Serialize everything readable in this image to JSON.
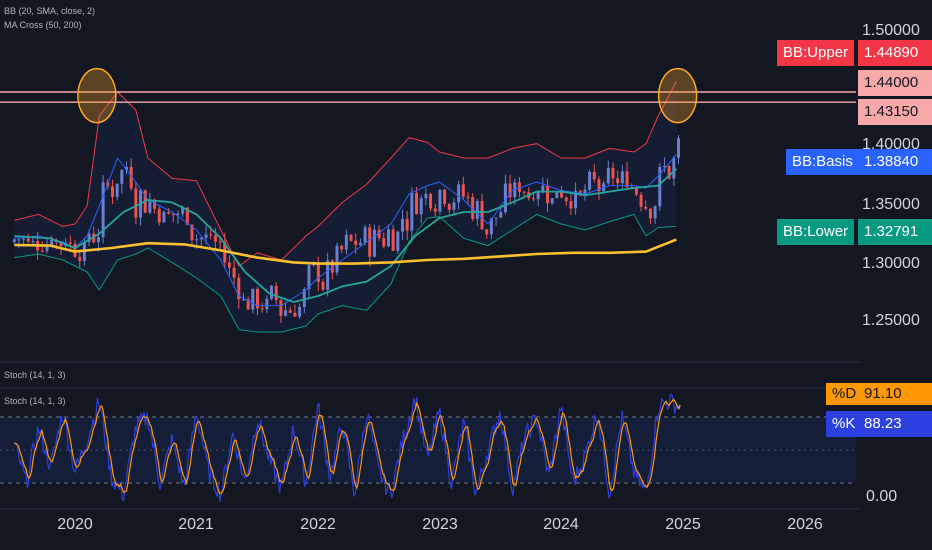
{
  "indicators": {
    "bb": "BB (20, SMA, close, 2)",
    "ma_cross": "MA Cross (50, 200)",
    "stoch_top": "Stoch (14, 1, 3)",
    "stoch_pane": "Stoch (14, 1, 3)"
  },
  "colors": {
    "background": "#131722",
    "candle_up": "#6a7fd0",
    "candle_down": "#ef5350",
    "bb_upper": "#f23645",
    "bb_basis": "#2962ff",
    "bb_lower": "#089981",
    "ma_fast": "#26a69a",
    "ma_slow": "#fbc02d",
    "resistance": "#f7a8a8",
    "highlight": "#ffa726",
    "stoch_k": "#2c3fe0",
    "stoch_d": "#ff9800"
  },
  "price_axis": {
    "ticks": [
      "1.50000",
      "1.40000",
      "1.35000",
      "1.30000",
      "1.25000"
    ]
  },
  "tags": {
    "bb_upper": {
      "label": "BB:Upper",
      "value": "1.44890"
    },
    "level_1": {
      "value": "1.44000"
    },
    "level_2": {
      "value": "1.43150"
    },
    "bb_basis": {
      "label": "BB:Basis",
      "value": "1.38840"
    },
    "bb_lower": {
      "label": "BB:Lower",
      "value": "1.32791"
    },
    "stoch_d": {
      "label": "%D",
      "value": "91.10"
    },
    "stoch_k": {
      "label": "%K",
      "value": "88.23"
    },
    "stoch_zero": "0.00"
  },
  "time_axis": {
    "labels": [
      "2020",
      "2021",
      "2022",
      "2023",
      "2024",
      "2025",
      "2026"
    ]
  },
  "chart_data": {
    "type": "line",
    "title": "",
    "x_unit": "year",
    "price_ylim": [
      1.215,
      1.515
    ],
    "series": [
      {
        "name": "BB:Upper",
        "x": [
          2019.5,
          2019.7,
          2019.9,
          2020.0,
          2020.1,
          2020.2,
          2020.35,
          2020.5,
          2020.6,
          2020.8,
          2021.0,
          2021.2,
          2021.35,
          2021.5,
          2021.7,
          2021.9,
          2022.0,
          2022.2,
          2022.4,
          2022.6,
          2022.75,
          2022.9,
          2023.0,
          2023.2,
          2023.4,
          2023.6,
          2023.8,
          2024.0,
          2024.2,
          2024.4,
          2024.6,
          2024.7,
          2024.8,
          2024.95
        ],
        "y": [
          1.333,
          1.338,
          1.328,
          1.33,
          1.345,
          1.42,
          1.44,
          1.425,
          1.385,
          1.368,
          1.366,
          1.325,
          1.295,
          1.306,
          1.3,
          1.32,
          1.328,
          1.348,
          1.363,
          1.385,
          1.402,
          1.398,
          1.39,
          1.385,
          1.385,
          1.393,
          1.397,
          1.385,
          1.385,
          1.393,
          1.39,
          1.397,
          1.42,
          1.449
        ]
      },
      {
        "name": "BB:Basis",
        "x": [
          2019.5,
          2019.7,
          2019.9,
          2020.0,
          2020.1,
          2020.2,
          2020.35,
          2020.5,
          2020.6,
          2020.8,
          2021.0,
          2021.2,
          2021.35,
          2021.5,
          2021.7,
          2021.9,
          2022.0,
          2022.2,
          2022.4,
          2022.6,
          2022.75,
          2022.9,
          2023.0,
          2023.2,
          2023.4,
          2023.6,
          2023.8,
          2024.0,
          2024.2,
          2024.4,
          2024.6,
          2024.7,
          2024.8,
          2024.95
        ],
        "y": [
          1.318,
          1.32,
          1.315,
          1.31,
          1.32,
          1.345,
          1.385,
          1.365,
          1.35,
          1.34,
          1.325,
          1.3,
          1.27,
          1.262,
          1.262,
          1.275,
          1.285,
          1.3,
          1.315,
          1.33,
          1.355,
          1.362,
          1.365,
          1.35,
          1.33,
          1.358,
          1.365,
          1.358,
          1.355,
          1.362,
          1.362,
          1.36,
          1.37,
          1.388
        ]
      },
      {
        "name": "BB:Lower",
        "x": [
          2019.5,
          2019.7,
          2019.9,
          2020.0,
          2020.1,
          2020.2,
          2020.35,
          2020.5,
          2020.6,
          2020.8,
          2021.0,
          2021.2,
          2021.35,
          2021.5,
          2021.7,
          2021.9,
          2022.0,
          2022.2,
          2022.4,
          2022.6,
          2022.75,
          2022.9,
          2023.0,
          2023.2,
          2023.4,
          2023.6,
          2023.8,
          2024.0,
          2024.2,
          2024.4,
          2024.6,
          2024.7,
          2024.8,
          2024.95
        ],
        "y": [
          1.302,
          1.305,
          1.3,
          1.295,
          1.29,
          1.275,
          1.3,
          1.305,
          1.31,
          1.298,
          1.285,
          1.27,
          1.242,
          1.24,
          1.24,
          1.245,
          1.255,
          1.262,
          1.258,
          1.28,
          1.315,
          1.335,
          1.336,
          1.318,
          1.312,
          1.325,
          1.338,
          1.33,
          1.325,
          1.332,
          1.338,
          1.32,
          1.327,
          1.328
        ]
      },
      {
        "name": "MA Cross fast (50)",
        "x": [
          2019.5,
          2019.8,
          2020.0,
          2020.2,
          2020.4,
          2020.6,
          2020.8,
          2021.0,
          2021.2,
          2021.4,
          2021.6,
          2021.8,
          2022.0,
          2022.2,
          2022.4,
          2022.6,
          2022.8,
          2023.0,
          2023.2,
          2023.4,
          2023.6,
          2023.8,
          2024.0,
          2024.2,
          2024.4,
          2024.6,
          2024.8,
          2024.95
        ],
        "y": [
          1.32,
          1.318,
          1.31,
          1.322,
          1.34,
          1.35,
          1.348,
          1.338,
          1.318,
          1.29,
          1.272,
          1.265,
          1.27,
          1.278,
          1.282,
          1.295,
          1.32,
          1.335,
          1.34,
          1.34,
          1.348,
          1.357,
          1.357,
          1.354,
          1.357,
          1.36,
          1.362,
          1.376
        ]
      },
      {
        "name": "MA Cross slow (200)",
        "x": [
          2019.5,
          2019.8,
          2020.0,
          2020.3,
          2020.6,
          2020.9,
          2021.2,
          2021.5,
          2021.8,
          2022.0,
          2022.3,
          2022.6,
          2022.9,
          2023.2,
          2023.5,
          2023.8,
          2024.1,
          2024.4,
          2024.7,
          2024.95
        ],
        "y": [
          1.3125,
          1.312,
          1.307,
          1.31,
          1.314,
          1.313,
          1.308,
          1.302,
          1.298,
          1.297,
          1.297,
          1.298,
          1.3,
          1.301,
          1.303,
          1.305,
          1.306,
          1.306,
          1.307,
          1.317
        ]
      }
    ],
    "horizontal_levels": [
      1.44,
      1.4315
    ],
    "highlights": [
      {
        "x": 2020.18,
        "y": 1.437
      },
      {
        "x": 2024.96,
        "y": 1.437
      }
    ],
    "stochastic": {
      "ylim": [
        0,
        100
      ],
      "bands": [
        80,
        20
      ],
      "latest": {
        "%K": 88.23,
        "%D": 91.1
      },
      "k_x": [
        2019.5,
        2019.6,
        2019.7,
        2019.8,
        2019.9,
        2020.0,
        2020.1,
        2020.2,
        2020.3,
        2020.4,
        2020.5,
        2020.6,
        2020.7,
        2020.8,
        2020.9,
        2021.0,
        2021.1,
        2021.2,
        2021.3,
        2021.4,
        2021.5,
        2021.6,
        2021.7,
        2021.8,
        2021.9,
        2022.0,
        2022.1,
        2022.2,
        2022.3,
        2022.4,
        2022.5,
        2022.6,
        2022.7,
        2022.8,
        2022.9,
        2023.0,
        2023.1,
        2023.2,
        2023.3,
        2023.4,
        2023.5,
        2023.6,
        2023.7,
        2023.8,
        2023.9,
        2024.0,
        2024.1,
        2024.2,
        2024.3,
        2024.4,
        2024.5,
        2024.6,
        2024.7,
        2024.8,
        2024.9,
        2024.98
      ],
      "k_y": [
        55,
        20,
        70,
        35,
        85,
        30,
        60,
        95,
        25,
        10,
        70,
        80,
        20,
        60,
        15,
        85,
        30,
        10,
        65,
        20,
        80,
        40,
        15,
        70,
        20,
        90,
        25,
        75,
        10,
        85,
        30,
        10,
        60,
        98,
        40,
        85,
        20,
        75,
        10,
        50,
        85,
        15,
        60,
        80,
        25,
        90,
        20,
        45,
        85,
        10,
        80,
        30,
        10,
        90,
        95,
        88
      ]
    }
  }
}
